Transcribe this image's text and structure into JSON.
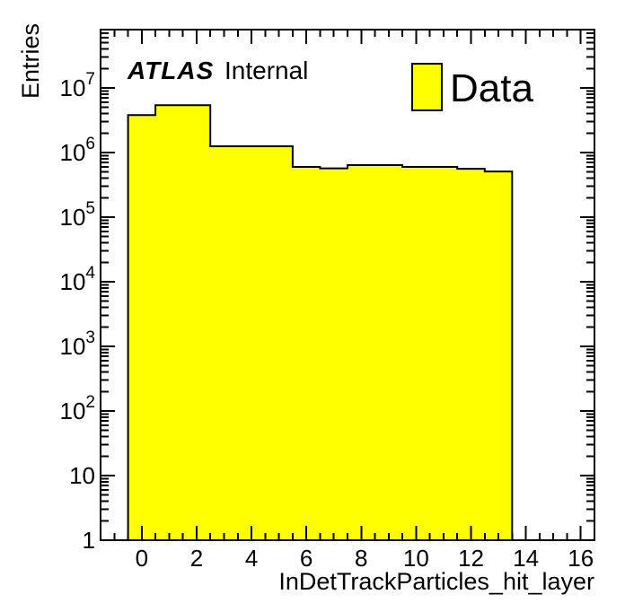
{
  "figure": {
    "background": "#ffffff",
    "atlas_label": "ATLAS",
    "atlas_sublabel": "Internal"
  },
  "chart_data": {
    "type": "bar",
    "subtype": "filled-step-histogram-log-y",
    "title": "",
    "xlabel": "InDetTrackParticles_hit_layer",
    "ylabel": "Entries",
    "x_min": -1.5,
    "x_max": 16.5,
    "y_min": 1,
    "y_max": 80000000,
    "y_scale": "log",
    "grid": false,
    "x_major_ticks": [
      0,
      2,
      4,
      6,
      8,
      10,
      12,
      14,
      16
    ],
    "x_tick_labels": [
      "0",
      "2",
      "4",
      "6",
      "8",
      "10",
      "12",
      "14",
      "16"
    ],
    "x_minor_step": 0.5,
    "y_major_tick_exponents": [
      0,
      1,
      2,
      3,
      4,
      5,
      6,
      7
    ],
    "y_tick_labels": [
      "1",
      "10",
      "10^2",
      "10^3",
      "10^4",
      "10^5",
      "10^6",
      "10^7"
    ],
    "bin_edges": [
      -0.5,
      0.5,
      1.5,
      2.5,
      3.5,
      4.5,
      5.5,
      6.5,
      7.5,
      8.5,
      9.5,
      10.5,
      11.5,
      12.5,
      13.5
    ],
    "counts": [
      3800000,
      5400000,
      5400000,
      1250000,
      1250000,
      1250000,
      600000,
      570000,
      640000,
      640000,
      600000,
      600000,
      560000,
      510000
    ],
    "fill_color": "#ffff00",
    "line_color": "#000000",
    "legend_position": "top-right",
    "legend": {
      "entries": [
        {
          "label": "Data",
          "fill": "#ffff00",
          "border": "#000000"
        }
      ]
    }
  }
}
